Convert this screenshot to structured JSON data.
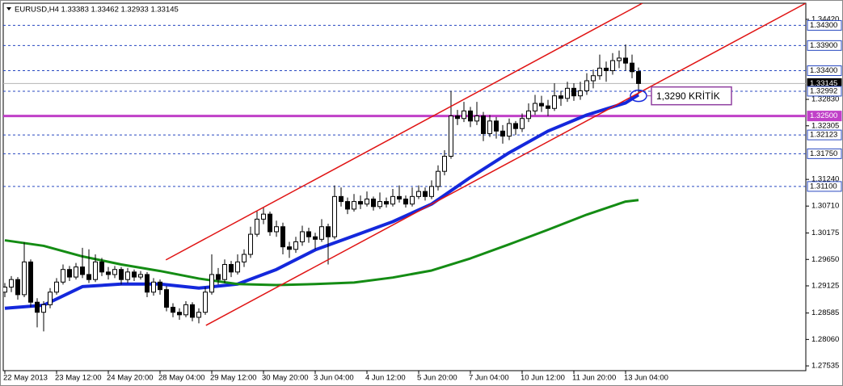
{
  "chart_data": {
    "type": "candlestick",
    "title": "EURUSD,H4  1.33383 1.33462 1.32933 1.33145",
    "ylim": [
      1.2744,
      1.3474
    ],
    "yticks": [
      {
        "value": 1.3442,
        "label": "1.34420"
      },
      {
        "value": 1.3283,
        "label": "1.32830"
      },
      1.32305,
      {
        "value": 1.3124,
        "label": "1.31240"
      },
      {
        "value": 1.3071,
        "label": "1.30710"
      },
      1.30175,
      {
        "value": 1.2965,
        "label": "1.29650"
      },
      1.29125,
      1.28585,
      {
        "value": 1.2806,
        "label": "1.28060"
      },
      1.27535
    ],
    "levels": [
      {
        "value": 1.343,
        "label": "1.34300",
        "style": "dashed",
        "color": "#2848c0"
      },
      {
        "value": 1.339,
        "label": "1.33900",
        "style": "dashed",
        "color": "#2848c0"
      },
      {
        "value": 1.334,
        "label": "1.33400",
        "style": "dashed",
        "color": "#2848c0"
      },
      {
        "value": 1.33145,
        "label": "1.33145",
        "style": "current",
        "color": "#b4b4b4"
      },
      {
        "value": 1.32992,
        "label": "1.32992",
        "style": "dashed",
        "color": "#2848c0"
      },
      {
        "value": 1.325,
        "label": "1.32500",
        "style": "thick",
        "color": "#c040c8"
      },
      {
        "value": 1.32123,
        "label": "1.32123",
        "style": "dashed",
        "color": "#2848c0"
      },
      {
        "value": 1.3175,
        "label": "1.31750",
        "style": "dashed",
        "color": "#2848c0"
      },
      {
        "value": 1.311,
        "label": "1.31100",
        "style": "dashed",
        "color": "#2848c0"
      }
    ],
    "categories": [
      "22 May 2013",
      null,
      null,
      null,
      null,
      null,
      null,
      null,
      "23 May 12:00",
      null,
      null,
      null,
      null,
      null,
      null,
      null,
      "24 May 20:00",
      null,
      null,
      null,
      null,
      null,
      null,
      null,
      "28 May 04:00",
      null,
      null,
      null,
      null,
      null,
      null,
      null,
      "29 May 12:00",
      null,
      null,
      null,
      null,
      null,
      null,
      null,
      "30 May 20:00",
      null,
      null,
      null,
      null,
      null,
      null,
      null,
      "3 Jun 04:00",
      null,
      null,
      null,
      null,
      null,
      null,
      null,
      "4 Jun 12:00",
      null,
      null,
      null,
      null,
      null,
      null,
      null,
      "5 Jun 20:00",
      null,
      null,
      null,
      null,
      null,
      null,
      null,
      "7 Jun 04:00",
      null,
      null,
      null,
      null,
      null,
      null,
      null,
      "10 Jun 12:00",
      null,
      null,
      null,
      null,
      null,
      null,
      null,
      "11 Jun 20:00",
      null,
      null,
      null,
      null,
      null,
      null,
      null,
      "13 Jun 04:00",
      null,
      null
    ],
    "candles": [
      [
        1.29,
        1.2918,
        1.289,
        1.291
      ],
      [
        1.291,
        1.2932,
        1.29,
        1.2925
      ],
      [
        1.2925,
        1.293,
        1.2885,
        1.2895
      ],
      [
        1.2895,
        1.2999,
        1.289,
        1.296
      ],
      [
        1.296,
        1.2965,
        1.287,
        1.288
      ],
      [
        1.288,
        1.2888,
        1.283,
        1.286
      ],
      [
        1.286,
        1.2882,
        1.2822,
        1.2875
      ],
      [
        1.2875,
        1.2908,
        1.2868,
        1.29
      ],
      [
        1.29,
        1.2928,
        1.2895,
        1.292
      ],
      [
        1.292,
        1.2955,
        1.2915,
        1.2945
      ],
      [
        1.2945,
        1.2952,
        1.2922,
        1.293
      ],
      [
        1.293,
        1.2958,
        1.2925,
        1.295
      ],
      [
        1.295,
        1.2988,
        1.2928,
        1.2935
      ],
      [
        1.2935,
        1.2985,
        1.2918,
        1.2925
      ],
      [
        1.2925,
        1.2975,
        1.292,
        1.296
      ],
      [
        1.296,
        1.2968,
        1.2932,
        1.294
      ],
      [
        1.294,
        1.295,
        1.2925,
        1.2935
      ],
      [
        1.2935,
        1.2952,
        1.2928,
        1.2945
      ],
      [
        1.2945,
        1.295,
        1.2915,
        1.2925
      ],
      [
        1.2925,
        1.2948,
        1.2918,
        1.294
      ],
      [
        1.294,
        1.2945,
        1.2922,
        1.293
      ],
      [
        1.293,
        1.2942,
        1.2925,
        1.2935
      ],
      [
        1.2935,
        1.294,
        1.289,
        1.29
      ],
      [
        1.29,
        1.2928,
        1.2893,
        1.292
      ],
      [
        1.292,
        1.2925,
        1.2895,
        1.2905
      ],
      [
        1.2905,
        1.2912,
        1.2862,
        1.287
      ],
      [
        1.287,
        1.2878,
        1.285,
        1.286
      ],
      [
        1.286,
        1.2868,
        1.2845,
        1.2855
      ],
      [
        1.2855,
        1.2882,
        1.285,
        1.2875
      ],
      [
        1.2875,
        1.288,
        1.2842,
        1.285
      ],
      [
        1.285,
        1.2868,
        1.2838,
        1.286
      ],
      [
        1.286,
        1.291,
        1.2855,
        1.29
      ],
      [
        1.29,
        1.2975,
        1.2895,
        1.2935
      ],
      [
        1.2935,
        1.2948,
        1.2915,
        1.2925
      ],
      [
        1.2925,
        1.2965,
        1.2918,
        1.2955
      ],
      [
        1.2955,
        1.2962,
        1.293,
        1.294
      ],
      [
        1.294,
        1.2975,
        1.2935,
        1.296
      ],
      [
        1.296,
        1.2985,
        1.295,
        1.2975
      ],
      [
        1.2975,
        1.303,
        1.2968,
        1.3015
      ],
      [
        1.3015,
        1.3062,
        1.301,
        1.3045
      ],
      [
        1.3045,
        1.3068,
        1.3035,
        1.3055
      ],
      [
        1.3055,
        1.306,
        1.3012,
        1.302
      ],
      [
        1.302,
        1.3042,
        1.301,
        1.303
      ],
      [
        1.303,
        1.3038,
        1.2975,
        1.299
      ],
      [
        1.299,
        1.3,
        1.2968,
        1.2985
      ],
      [
        1.2985,
        1.301,
        1.2978,
        1.3
      ],
      [
        1.3,
        1.3032,
        1.2992,
        1.302
      ],
      [
        1.302,
        1.3028,
        1.2998,
        1.301
      ],
      [
        1.301,
        1.3018,
        1.2985,
        1.3005
      ],
      [
        1.3005,
        1.3045,
        1.3,
        1.303
      ],
      [
        1.303,
        1.3036,
        1.2955,
        1.301
      ],
      [
        1.301,
        1.3112,
        1.3005,
        1.309
      ],
      [
        1.309,
        1.3108,
        1.307,
        1.308
      ],
      [
        1.308,
        1.3088,
        1.3055,
        1.3065
      ],
      [
        1.3065,
        1.3095,
        1.306,
        1.308
      ],
      [
        1.308,
        1.3092,
        1.3065,
        1.3075
      ],
      [
        1.3075,
        1.31,
        1.307,
        1.3085
      ],
      [
        1.3085,
        1.309,
        1.3062,
        1.307
      ],
      [
        1.307,
        1.3098,
        1.3065,
        1.308
      ],
      [
        1.308,
        1.3088,
        1.3068,
        1.3075
      ],
      [
        1.3075,
        1.3105,
        1.307,
        1.309
      ],
      [
        1.309,
        1.3112,
        1.3078,
        1.3085
      ],
      [
        1.3085,
        1.3092,
        1.3068,
        1.3075
      ],
      [
        1.3075,
        1.3108,
        1.307,
        1.309
      ],
      [
        1.309,
        1.3112,
        1.3085,
        1.31
      ],
      [
        1.31,
        1.3108,
        1.3082,
        1.309
      ],
      [
        1.309,
        1.3122,
        1.3085,
        1.311
      ],
      [
        1.311,
        1.3152,
        1.3102,
        1.314
      ],
      [
        1.314,
        1.3182,
        1.3132,
        1.317
      ],
      [
        1.317,
        1.33,
        1.3165,
        1.325
      ],
      [
        1.325,
        1.3262,
        1.3232,
        1.3245
      ],
      [
        1.3245,
        1.3278,
        1.3238,
        1.326
      ],
      [
        1.326,
        1.3268,
        1.3228,
        1.324
      ],
      [
        1.324,
        1.3278,
        1.3232,
        1.325
      ],
      [
        1.325,
        1.3258,
        1.32,
        1.3215
      ],
      [
        1.3215,
        1.3252,
        1.3208,
        1.324
      ],
      [
        1.324,
        1.3248,
        1.3205,
        1.322
      ],
      [
        1.322,
        1.3232,
        1.3195,
        1.321
      ],
      [
        1.321,
        1.3245,
        1.3202,
        1.3235
      ],
      [
        1.3235,
        1.324,
        1.3212,
        1.3225
      ],
      [
        1.3225,
        1.3255,
        1.3218,
        1.3245
      ],
      [
        1.3245,
        1.3275,
        1.3238,
        1.326
      ],
      [
        1.326,
        1.3292,
        1.3252,
        1.3275
      ],
      [
        1.3275,
        1.329,
        1.3258,
        1.327
      ],
      [
        1.327,
        1.3282,
        1.325,
        1.3265
      ],
      [
        1.3265,
        1.3315,
        1.326,
        1.329
      ],
      [
        1.329,
        1.33,
        1.327,
        1.3285
      ],
      [
        1.3285,
        1.3318,
        1.3278,
        1.3305
      ],
      [
        1.3305,
        1.3315,
        1.328,
        1.329
      ],
      [
        1.329,
        1.3318,
        1.3282,
        1.33
      ],
      [
        1.33,
        1.3335,
        1.3292,
        1.332
      ],
      [
        1.332,
        1.3342,
        1.3305,
        1.333
      ],
      [
        1.333,
        1.3372,
        1.3322,
        1.3345
      ],
      [
        1.3345,
        1.3358,
        1.3318,
        1.334
      ],
      [
        1.334,
        1.3375,
        1.3332,
        1.336
      ],
      [
        1.336,
        1.338,
        1.3345,
        1.3365
      ],
      [
        1.3365,
        1.3392,
        1.334,
        1.3355
      ],
      [
        1.3355,
        1.3372,
        1.3325,
        1.3338
      ],
      [
        1.33383,
        1.33462,
        1.32933,
        1.33145
      ]
    ],
    "series": [
      {
        "color": "#1428dc",
        "width": 4,
        "x": [
          0,
          6,
          12,
          18,
          24,
          30,
          36,
          42,
          48,
          54,
          60,
          66,
          72,
          78,
          84,
          90,
          96,
          98
        ],
        "values": [
          1.2868,
          1.2874,
          1.2911,
          1.2916,
          1.2916,
          1.2908,
          1.2916,
          1.2945,
          1.2984,
          1.3012,
          1.304,
          1.3075,
          1.3128,
          1.3177,
          1.322,
          1.3252,
          1.3276,
          1.3292
        ]
      },
      {
        "color": "#148c14",
        "width": 3,
        "x": [
          0,
          6,
          12,
          18,
          24,
          30,
          36,
          42,
          48,
          54,
          60,
          66,
          72,
          78,
          84,
          90,
          96,
          98
        ],
        "values": [
          1.3003,
          1.2992,
          1.2971,
          1.2955,
          1.2942,
          1.2927,
          1.2916,
          1.2914,
          1.2916,
          1.2919,
          1.2929,
          1.2943,
          1.2967,
          1.2995,
          1.3024,
          1.3054,
          1.308,
          1.3083
        ]
      }
    ],
    "trendlines": [
      {
        "color": "#e01414",
        "x": [
          31.1,
          124.3
        ],
        "y": [
          1.2834,
          1.3477
        ]
      },
      {
        "color": "#e01414",
        "x": [
          24.9,
          98.6
        ],
        "y": [
          1.2964,
          1.3474
        ]
      }
    ],
    "annotation": {
      "text": "1,3290 KRİTİK",
      "x": 98,
      "y": 1.329
    }
  }
}
